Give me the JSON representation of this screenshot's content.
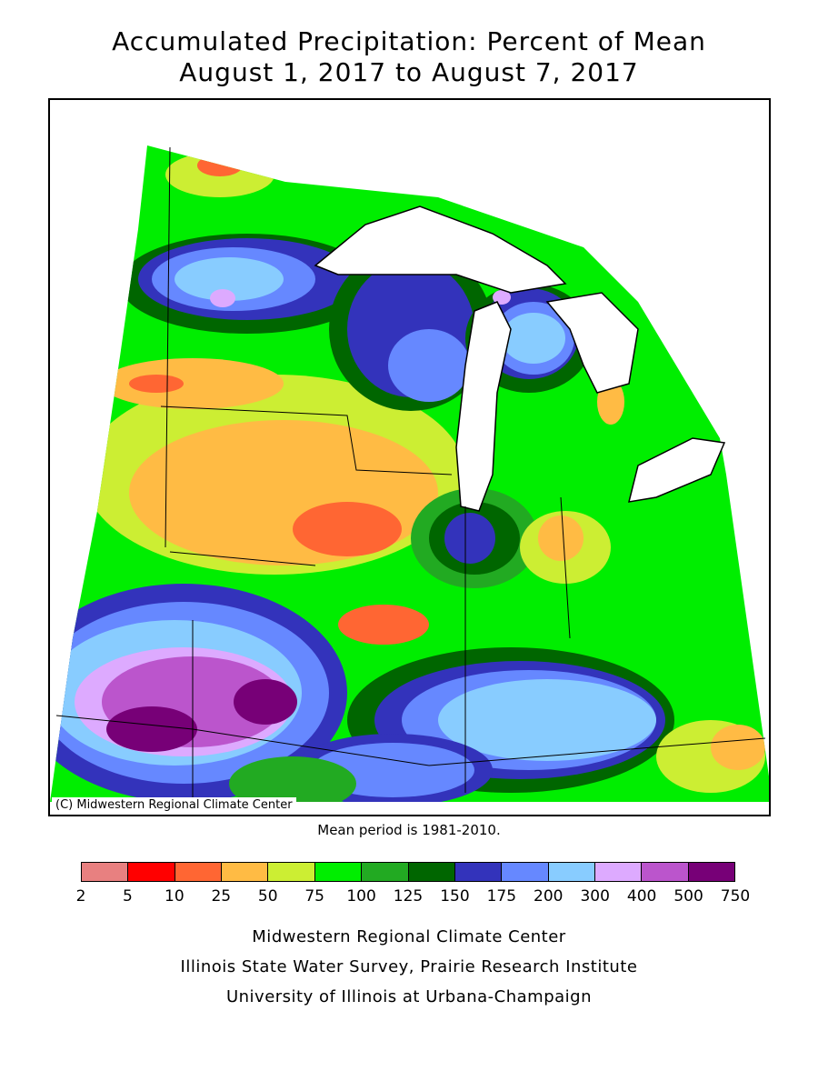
{
  "title": {
    "line1": "Accumulated Precipitation: Percent of Mean",
    "line2": "August 1, 2017 to August 7, 2017"
  },
  "map": {
    "copyright": "(C) Midwestern Regional Climate Center",
    "note": "Mean period is 1981-2010."
  },
  "legend": {
    "breaks": [
      "2",
      "5",
      "10",
      "25",
      "50",
      "75",
      "100",
      "125",
      "150",
      "175",
      "200",
      "300",
      "400",
      "500",
      "750"
    ],
    "colors": [
      "#e88080",
      "#ff0000",
      "#ff6633",
      "#ffbb44",
      "#ccee33",
      "#00ee00",
      "#22aa22",
      "#006600",
      "#3333bb",
      "#6688ff",
      "#88ccff",
      "#ddaaff",
      "#bb55cc",
      "#770077"
    ]
  },
  "credits": [
    "Midwestern Regional Climate Center",
    "Illinois State Water Survey, Prairie Research Institute",
    "University of Illinois at Urbana-Champaign"
  ]
}
